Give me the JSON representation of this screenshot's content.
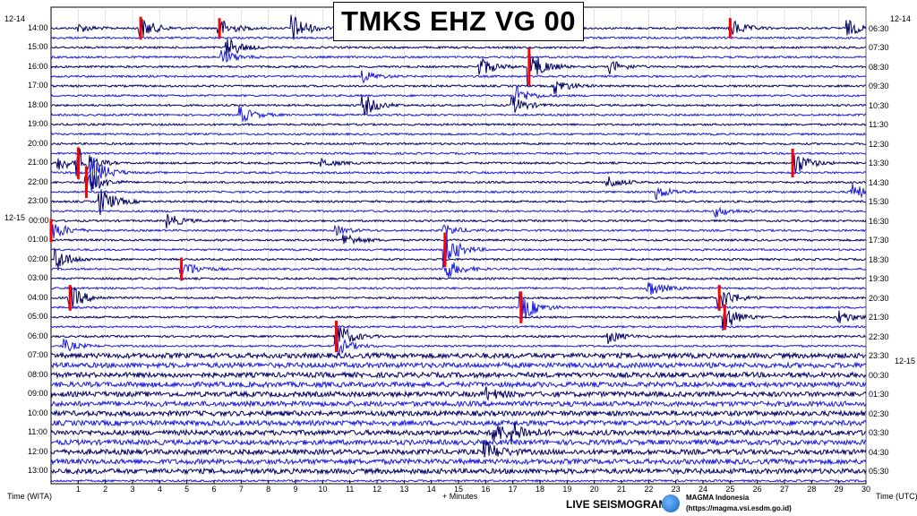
{
  "chart_data": {
    "type": "line",
    "title": "TMKS EHZ VG 00",
    "xlabel": "+ Minutes",
    "xlim": [
      0,
      30
    ],
    "x_ticks": [
      1,
      2,
      3,
      4,
      5,
      6,
      7,
      8,
      9,
      10,
      11,
      12,
      13,
      14,
      15,
      16,
      17,
      18,
      19,
      20,
      21,
      22,
      23,
      24,
      25,
      26,
      27,
      28,
      29,
      30
    ],
    "left_axis_label": "Time (WITA)",
    "right_axis_label": "Time (UTC)",
    "left_date_start": "12-14",
    "left_date_change": "12-15",
    "right_date_start": "12-14",
    "right_date_change": "12-15",
    "left_ticks": [
      "14:00",
      "15:00",
      "16:00",
      "17:00",
      "18:00",
      "19:00",
      "20:00",
      "21:00",
      "22:00",
      "23:00",
      "00:00",
      "01:00",
      "02:00",
      "03:00",
      "04:00",
      "05:00",
      "06:00",
      "07:00",
      "08:00",
      "09:00",
      "10:00",
      "11:00",
      "12:00",
      "13:00"
    ],
    "right_ticks": [
      "06:30",
      "07:30",
      "08:30",
      "09:30",
      "10:30",
      "11:30",
      "12:30",
      "13:30",
      "14:30",
      "15:30",
      "16:30",
      "17:30",
      "18:30",
      "19:30",
      "20:30",
      "21:30",
      "22:30",
      "23:30",
      "00:30",
      "01:30",
      "02:30",
      "03:30",
      "04:30",
      "05:30"
    ],
    "lines_per_hour": 2,
    "trace_colors": [
      "#000066",
      "#1a1adc"
    ],
    "clip_color": "#ff0000",
    "events": [
      {
        "row": 0,
        "minute": 1.0,
        "amp": 0.6
      },
      {
        "row": 0,
        "minute": 3.3,
        "amp": 1.6,
        "clip": true
      },
      {
        "row": 0,
        "minute": 6.2,
        "amp": 1.4,
        "clip": true
      },
      {
        "row": 0,
        "minute": 8.9,
        "amp": 2.0
      },
      {
        "row": 0,
        "minute": 25.0,
        "amp": 1.4,
        "clip": true
      },
      {
        "row": 0,
        "minute": 29.3,
        "amp": 1.2
      },
      {
        "row": 2,
        "minute": 6.5,
        "amp": 1.4
      },
      {
        "row": 3,
        "minute": 6.3,
        "amp": 1.0
      },
      {
        "row": 4,
        "minute": 15.8,
        "amp": 1.4
      },
      {
        "row": 4,
        "minute": 17.6,
        "amp": 2.6,
        "clip": true
      },
      {
        "row": 4,
        "minute": 20.6,
        "amp": 0.9
      },
      {
        "row": 5,
        "minute": 11.5,
        "amp": 0.8
      },
      {
        "row": 6,
        "minute": 18.6,
        "amp": 1.0
      },
      {
        "row": 7,
        "minute": 17.1,
        "amp": 1.3
      },
      {
        "row": 8,
        "minute": 11.5,
        "amp": 1.6
      },
      {
        "row": 8,
        "minute": 17.0,
        "amp": 1.2
      },
      {
        "row": 9,
        "minute": 7.0,
        "amp": 1.1
      },
      {
        "row": 14,
        "minute": 0.3,
        "amp": 1.0
      },
      {
        "row": 14,
        "minute": 1.0,
        "amp": 2.2,
        "clip": true
      },
      {
        "row": 14,
        "minute": 10.0,
        "amp": 0.6
      },
      {
        "row": 14,
        "minute": 27.3,
        "amp": 2.0,
        "clip": true
      },
      {
        "row": 15,
        "minute": 1.5,
        "amp": 2.4
      },
      {
        "row": 16,
        "minute": 1.3,
        "amp": 2.2,
        "clip": true
      },
      {
        "row": 16,
        "minute": 20.5,
        "amp": 0.9
      },
      {
        "row": 17,
        "minute": 22.3,
        "amp": 1.0
      },
      {
        "row": 17,
        "minute": 29.5,
        "amp": 1.2
      },
      {
        "row": 18,
        "minute": 1.8,
        "amp": 2.0
      },
      {
        "row": 19,
        "minute": 24.5,
        "amp": 0.7
      },
      {
        "row": 20,
        "minute": 4.3,
        "amp": 1.0
      },
      {
        "row": 21,
        "minute": 0.0,
        "amp": 1.6,
        "clip": true
      },
      {
        "row": 21,
        "minute": 10.5,
        "amp": 0.6
      },
      {
        "row": 21,
        "minute": 14.5,
        "amp": 0.8
      },
      {
        "row": 22,
        "minute": 10.8,
        "amp": 1.0
      },
      {
        "row": 23,
        "minute": 14.5,
        "amp": 2.4,
        "clip": true
      },
      {
        "row": 24,
        "minute": 0.2,
        "amp": 1.6
      },
      {
        "row": 25,
        "minute": 4.8,
        "amp": 1.6,
        "clip": true
      },
      {
        "row": 25,
        "minute": 14.5,
        "amp": 1.6
      },
      {
        "row": 27,
        "minute": 22.0,
        "amp": 1.2
      },
      {
        "row": 28,
        "minute": 0.7,
        "amp": 1.8,
        "clip": true
      },
      {
        "row": 28,
        "minute": 24.6,
        "amp": 1.8,
        "clip": true
      },
      {
        "row": 29,
        "minute": 17.3,
        "amp": 2.2,
        "clip": true
      },
      {
        "row": 30,
        "minute": 24.8,
        "amp": 1.8,
        "clip": true
      },
      {
        "row": 30,
        "minute": 29.0,
        "amp": 1.0
      },
      {
        "row": 32,
        "minute": 10.5,
        "amp": 2.2,
        "clip": true
      },
      {
        "row": 32,
        "minute": 20.5,
        "amp": 1.0
      },
      {
        "row": 33,
        "minute": 0.5,
        "amp": 0.8
      },
      {
        "row": 33,
        "minute": 10.5,
        "amp": 1.4
      },
      {
        "row": 38,
        "minute": 16.0,
        "amp": 0.8
      },
      {
        "row": 42,
        "minute": 16.3,
        "amp": 1.4
      },
      {
        "row": 42,
        "minute": 17.0,
        "amp": 1.2
      },
      {
        "row": 44,
        "minute": 16.0,
        "amp": 1.4
      }
    ]
  },
  "footer": {
    "left_label": "Time (WITA)",
    "center_label": "+ Minutes",
    "right_label": "Time (UTC)",
    "brand": "LIVE SEISMOGRAM",
    "agency": "MAGMA Indonesia",
    "url": "(https://magma.vsi.esdm.go.id)"
  }
}
